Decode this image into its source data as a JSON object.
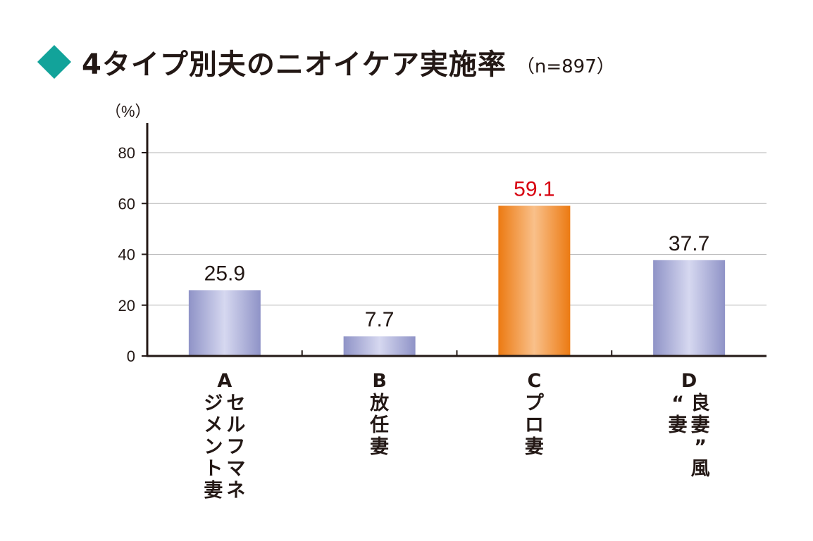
{
  "title": "4タイプ別夫のニオイケア実施率",
  "subtitle": "（n=897）",
  "colors": {
    "accent": "#12a39a",
    "highlight_text": "#d7000f",
    "bar_lavender": "#a8acd8",
    "bar_orange": "#f08a24"
  },
  "chart_data": {
    "type": "bar",
    "ylabel": "（%）",
    "ylim": [
      0,
      80
    ],
    "yticks": [
      "0",
      "20",
      "40",
      "60",
      "80"
    ],
    "grid": true,
    "highlight_index": 2,
    "categories": [
      {
        "letter": "A",
        "columns": [
          "セルフマネ",
          "ジメント妻"
        ]
      },
      {
        "letter": "B",
        "columns": [
          "放任妻"
        ]
      },
      {
        "letter": "C",
        "columns": [
          "プロ妻"
        ]
      },
      {
        "letter": "D",
        "columns": [
          "良妻”風",
          "“妻"
        ]
      }
    ],
    "values": [
      25.9,
      7.7,
      59.1,
      37.7
    ],
    "value_labels": [
      "25.9",
      "7.7",
      "59.1",
      "37.7"
    ]
  }
}
